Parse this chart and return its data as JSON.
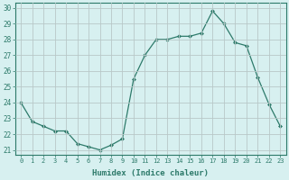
{
  "x": [
    0,
    1,
    2,
    3,
    4,
    5,
    6,
    7,
    8,
    9,
    10,
    11,
    12,
    13,
    14,
    15,
    16,
    17,
    18,
    19,
    20,
    21,
    22,
    23
  ],
  "y": [
    24.0,
    22.8,
    22.5,
    22.2,
    22.2,
    21.4,
    21.2,
    21.0,
    21.3,
    21.7,
    25.5,
    27.0,
    28.0,
    28.0,
    28.2,
    28.2,
    28.4,
    29.8,
    29.0,
    27.8,
    27.6,
    25.6,
    23.9,
    22.5
  ],
  "xlim": [
    -0.5,
    23.5
  ],
  "ylim": [
    20.7,
    30.3
  ],
  "yticks": [
    21,
    22,
    23,
    24,
    25,
    26,
    27,
    28,
    29,
    30
  ],
  "xticks": [
    0,
    1,
    2,
    3,
    4,
    5,
    6,
    7,
    8,
    9,
    10,
    11,
    12,
    13,
    14,
    15,
    16,
    17,
    18,
    19,
    20,
    21,
    22,
    23
  ],
  "xlabel": "Humidex (Indice chaleur)",
  "line_color": "#2d7a6a",
  "marker": "D",
  "marker_size": 2.0,
  "bg_color": "#d7f0f0",
  "grid_color": "#b8c8c8",
  "tick_color": "#2d7a6a",
  "label_color": "#2d7a6a",
  "spine_color": "#2d7a6a"
}
